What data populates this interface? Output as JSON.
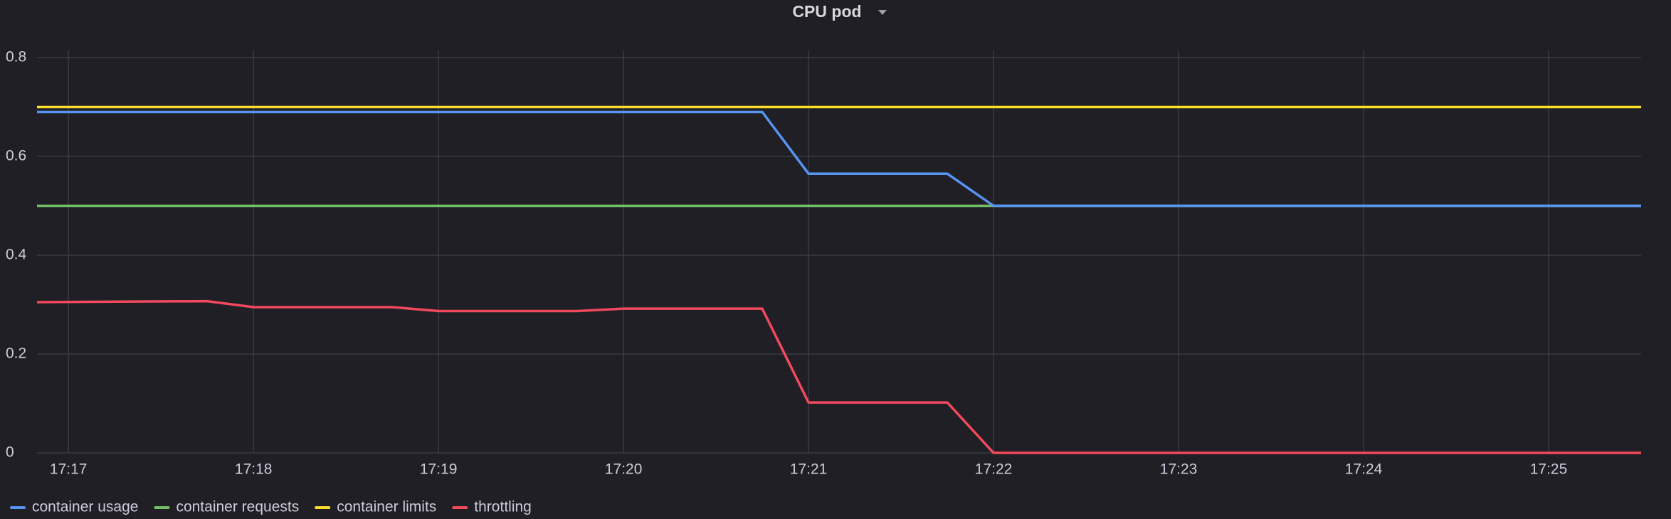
{
  "chart_data": {
    "type": "line",
    "title": "CPU pod",
    "x": [
      1036.83,
      1037.75,
      1038,
      1038.75,
      1039,
      1039.75,
      1040,
      1040.75,
      1041,
      1041.75,
      1042,
      1045.5
    ],
    "series": [
      {
        "name": "container usage",
        "color": "#5794f2",
        "values": [
          0.69,
          0.69,
          0.69,
          0.69,
          0.69,
          0.69,
          0.69,
          0.69,
          0.565,
          0.565,
          0.5,
          0.5
        ]
      },
      {
        "name": "container requests",
        "color": "#73bf69",
        "values": [
          0.5,
          0.5,
          0.5,
          0.5,
          0.5,
          0.5,
          0.5,
          0.5,
          0.5,
          0.5,
          0.5,
          0.5
        ]
      },
      {
        "name": "container limits",
        "color": "#fade2a",
        "values": [
          0.7,
          0.7,
          0.7,
          0.7,
          0.7,
          0.7,
          0.7,
          0.7,
          0.7,
          0.7,
          0.7,
          0.7
        ]
      },
      {
        "name": "throttling",
        "color": "#f2495c",
        "values": [
          0.305,
          0.307,
          0.295,
          0.295,
          0.287,
          0.287,
          0.292,
          0.292,
          0.102,
          0.102,
          0,
          0
        ]
      }
    ],
    "xlim": [
      1036.83,
      1045.5
    ],
    "xticks": [
      {
        "value": 1037,
        "label": "17:17"
      },
      {
        "value": 1038,
        "label": "17:18"
      },
      {
        "value": 1039,
        "label": "17:19"
      },
      {
        "value": 1040,
        "label": "17:20"
      },
      {
        "value": 1041,
        "label": "17:21"
      },
      {
        "value": 1042,
        "label": "17:22"
      },
      {
        "value": 1043,
        "label": "17:23"
      },
      {
        "value": 1044,
        "label": "17:24"
      },
      {
        "value": 1045,
        "label": "17:25"
      }
    ],
    "ylim": [
      0,
      0.8
    ],
    "yticks": [
      0,
      0.2,
      0.4,
      0.6,
      0.8
    ],
    "grid": true
  }
}
